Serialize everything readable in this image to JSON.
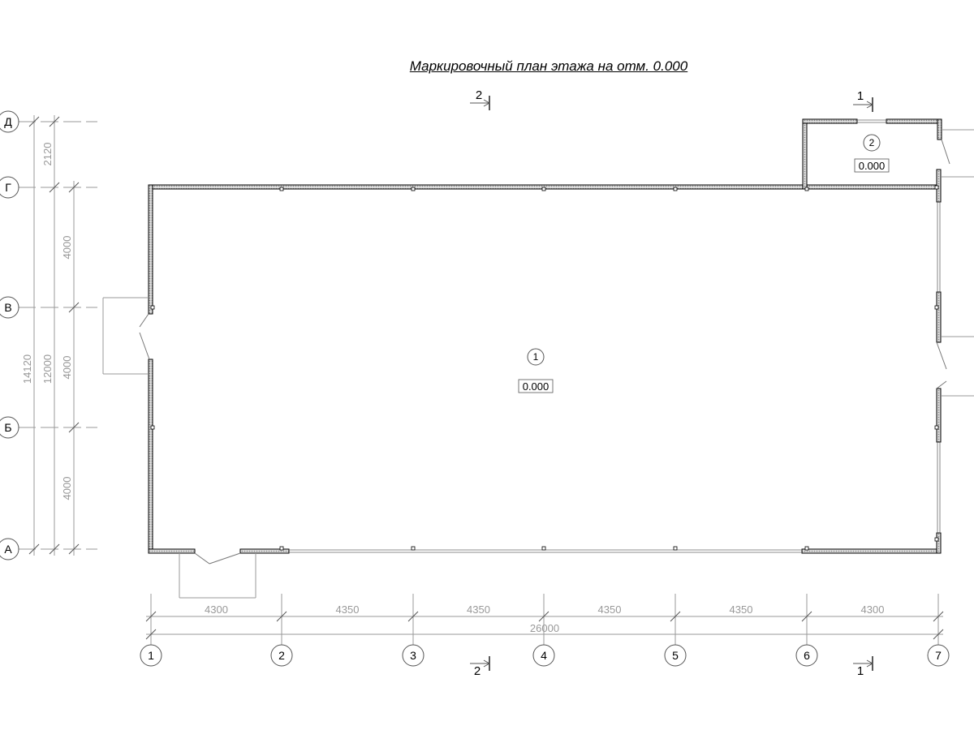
{
  "title": "Маркировочный план этажа на отм. 0.000",
  "grid_columns": [
    "1",
    "2",
    "3",
    "4",
    "5",
    "6",
    "7"
  ],
  "grid_rows": [
    "Д",
    "Г",
    "В",
    "Б",
    "А"
  ],
  "dimensions_horizontal": [
    "4300",
    "4350",
    "4350",
    "4350",
    "4350",
    "4300"
  ],
  "dimension_horizontal_total": "26000",
  "dimensions_vertical_inner": [
    "4000",
    "4000",
    "4000"
  ],
  "dimension_vertical_2120": "2120",
  "dimension_vertical_12000": "12000",
  "dimension_vertical_14120": "14120",
  "rooms": [
    {
      "number": "1",
      "elevation": "0.000"
    },
    {
      "number": "2",
      "elevation": "0.000"
    }
  ],
  "section_marks": [
    {
      "label": "2"
    },
    {
      "label": "1"
    },
    {
      "label": "2"
    },
    {
      "label": "1"
    }
  ],
  "colors": {
    "line": "#000000",
    "dim": "#999999",
    "hatch": "#bbbbbb"
  }
}
